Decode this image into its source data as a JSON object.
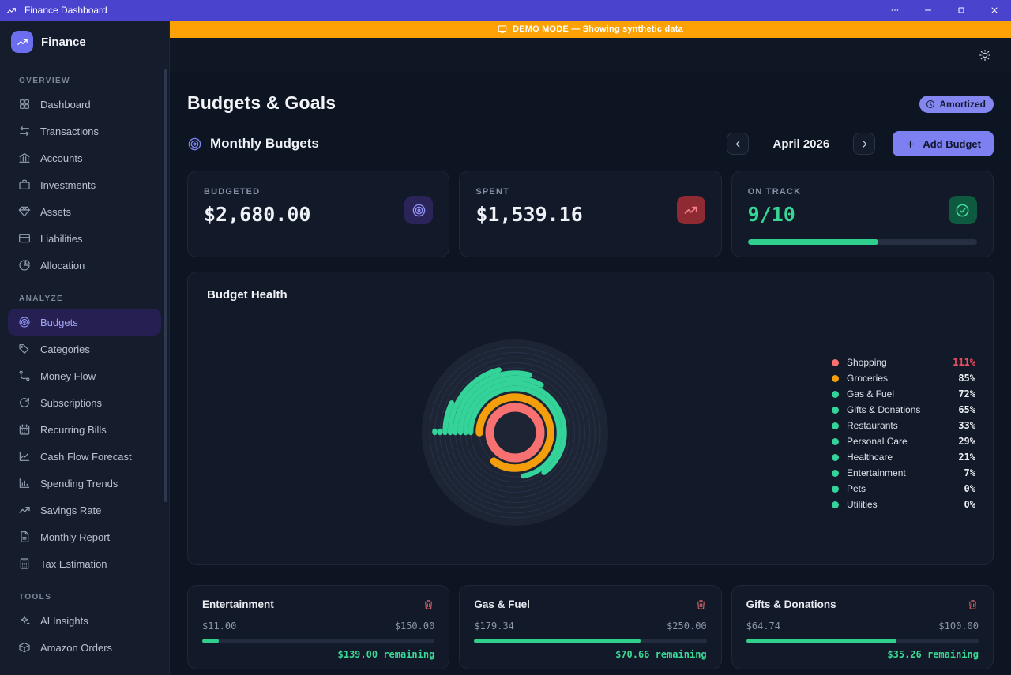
{
  "window": {
    "title": "Finance Dashboard",
    "controls": [
      {
        "name": "ellipsis"
      },
      {
        "name": "minimize"
      },
      {
        "name": "maximize"
      },
      {
        "name": "close"
      }
    ]
  },
  "banner": {
    "text": "DEMO MODE — Showing synthetic data",
    "icon": "monitor",
    "color": "#fca106"
  },
  "sidebar": {
    "brand": "Finance",
    "sections": [
      {
        "label": "OVERVIEW",
        "items": [
          {
            "label": "Dashboard",
            "icon": "grid",
            "active": false
          },
          {
            "label": "Transactions",
            "icon": "swap",
            "active": false
          },
          {
            "label": "Accounts",
            "icon": "bank",
            "active": false
          },
          {
            "label": "Investments",
            "icon": "briefcase",
            "active": false
          },
          {
            "label": "Assets",
            "icon": "gem",
            "active": false
          },
          {
            "label": "Liabilities",
            "icon": "card",
            "active": false
          },
          {
            "label": "Allocation",
            "icon": "pie",
            "active": false
          }
        ]
      },
      {
        "label": "ANALYZE",
        "items": [
          {
            "label": "Budgets",
            "icon": "target",
            "active": true
          },
          {
            "label": "Categories",
            "icon": "tags",
            "active": false
          },
          {
            "label": "Money Flow",
            "icon": "flow",
            "active": false
          },
          {
            "label": "Subscriptions",
            "icon": "refresh",
            "active": false
          },
          {
            "label": "Recurring Bills",
            "icon": "calendar",
            "active": false
          },
          {
            "label": "Cash Flow Forecast",
            "icon": "linechart",
            "active": false
          },
          {
            "label": "Spending Trends",
            "icon": "barchart",
            "active": false
          },
          {
            "label": "Savings Rate",
            "icon": "trend",
            "active": false
          },
          {
            "label": "Monthly Report",
            "icon": "document",
            "active": false
          },
          {
            "label": "Tax Estimation",
            "icon": "calculator",
            "active": false
          }
        ]
      },
      {
        "label": "TOOLS",
        "items": [
          {
            "label": "AI Insights",
            "icon": "sparkles",
            "active": false
          },
          {
            "label": "Amazon Orders",
            "icon": "package",
            "active": false
          }
        ]
      }
    ]
  },
  "header": {
    "title": "Budgets & Goals",
    "badge": "Amortized"
  },
  "toolbar": {
    "section_title": "Monthly Budgets",
    "month": "April 2026",
    "add_budget_label": "Add Budget"
  },
  "stats": {
    "budgeted": {
      "label": "BUDGETED",
      "value": "$2,680.00"
    },
    "spent": {
      "label": "SPENT",
      "value": "$1,539.16"
    },
    "on_track": {
      "label": "ON TRACK",
      "value": "9/10",
      "progress_pct": 57
    }
  },
  "chart_data": {
    "type": "radial-bar",
    "title": "Budget Health",
    "legend_position": "right",
    "accent_green": "#34d399",
    "over_budget_color": "#f87171",
    "series": [
      {
        "name": "Shopping",
        "pct": 111,
        "color": "#f87171"
      },
      {
        "name": "Groceries",
        "pct": 85,
        "color": "#f59e0b"
      },
      {
        "name": "Gas & Fuel",
        "pct": 72,
        "color": "#34d399"
      },
      {
        "name": "Gifts & Donations",
        "pct": 65,
        "color": "#34d399"
      },
      {
        "name": "Restaurants",
        "pct": 33,
        "color": "#34d399"
      },
      {
        "name": "Personal Care",
        "pct": 29,
        "color": "#34d399"
      },
      {
        "name": "Healthcare",
        "pct": 21,
        "color": "#34d399"
      },
      {
        "name": "Entertainment",
        "pct": 7,
        "color": "#34d399"
      },
      {
        "name": "Pets",
        "pct": 0,
        "color": "#34d399"
      },
      {
        "name": "Utilities",
        "pct": 0,
        "color": "#34d399"
      }
    ]
  },
  "budget_cards": [
    {
      "name": "Entertainment",
      "spent": "$11.00",
      "budget": "$150.00",
      "remaining": "$139.00 remaining",
      "pct": 7.3
    },
    {
      "name": "Gas & Fuel",
      "spent": "$179.34",
      "budget": "$250.00",
      "remaining": "$70.66 remaining",
      "pct": 71.7
    },
    {
      "name": "Gifts & Donations",
      "spent": "$64.74",
      "budget": "$100.00",
      "remaining": "$35.26 remaining",
      "pct": 64.7
    }
  ]
}
